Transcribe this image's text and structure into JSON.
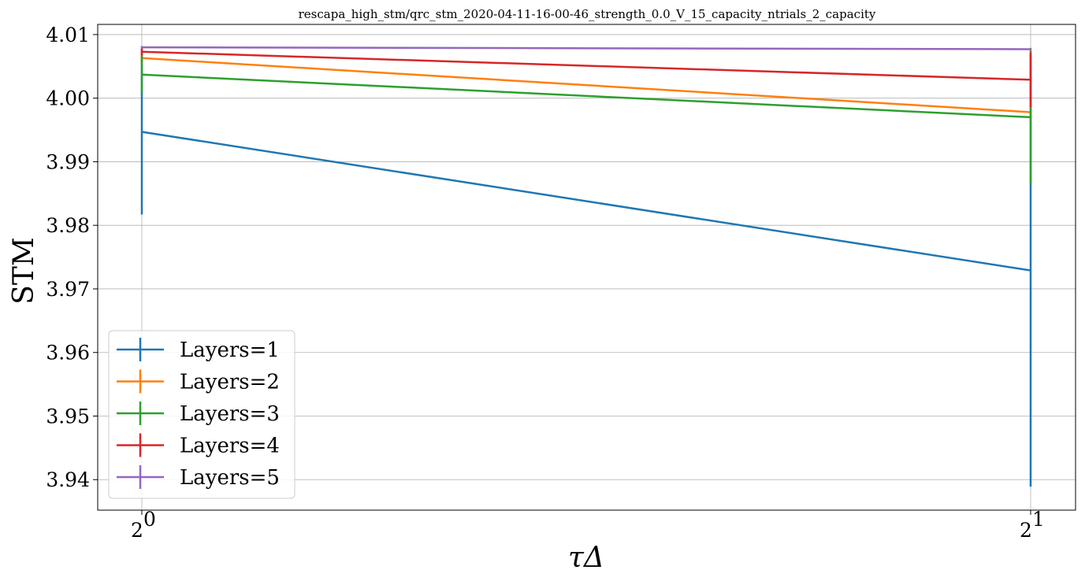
{
  "chart_data": {
    "type": "line",
    "title": "rescapa_high_stm/qrc_stm_2020-04-11-16-00-46_strength_0.0_V_15_capacity_ntrials_2_capacity",
    "xlabel": "τΔ",
    "ylabel": "STM",
    "x_scale": "log2",
    "x": [
      1,
      2
    ],
    "x_tick_labels": [
      {
        "base": "2",
        "exp": "0"
      },
      {
        "base": "2",
        "exp": "1"
      }
    ],
    "ylim": [
      3.9352,
      4.0116
    ],
    "y_ticks": [
      3.94,
      3.95,
      3.96,
      3.97,
      3.98,
      3.99,
      4.0,
      4.01
    ],
    "y_tick_labels": [
      "3.94",
      "3.95",
      "3.96",
      "3.97",
      "3.98",
      "3.99",
      "4.00",
      "4.01"
    ],
    "grid": true,
    "legend_position": "lower-left",
    "series": [
      {
        "name": "Layers=1",
        "color": "#1f77b4",
        "values": [
          3.9947,
          3.9729
        ],
        "errors": [
          0.013,
          0.034
        ]
      },
      {
        "name": "Layers=2",
        "color": "#ff7f0e",
        "values": [
          4.0063,
          3.9978
        ],
        "errors": [
          0.001,
          0.001
        ]
      },
      {
        "name": "Layers=3",
        "color": "#2ca02c",
        "values": [
          4.0037,
          3.997
        ],
        "errors": [
          0.003,
          0.0105
        ]
      },
      {
        "name": "Layers=4",
        "color": "#d62728",
        "values": [
          4.0073,
          4.0029
        ],
        "errors": [
          0.0006,
          0.0043
        ]
      },
      {
        "name": "Layers=5",
        "color": "#9467bd",
        "values": [
          4.008,
          4.0077
        ],
        "errors": [
          0.0002,
          0.0002
        ]
      }
    ]
  }
}
